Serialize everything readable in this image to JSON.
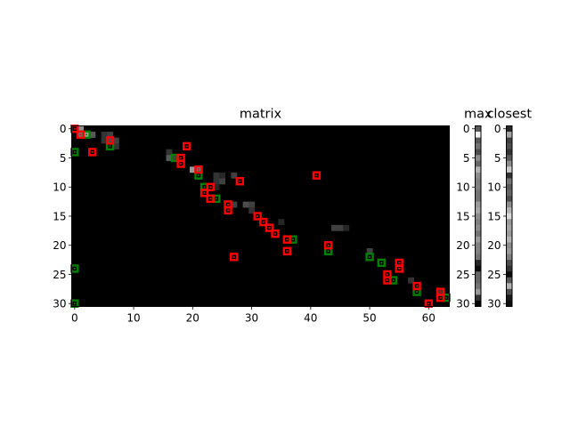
{
  "chart_data": [
    {
      "type": "heatmap",
      "title": "matrix",
      "rows": 31,
      "cols": 64,
      "xlim": [
        -0.5,
        63.5
      ],
      "ylim": [
        30.5,
        -0.5
      ],
      "xticks": [
        "0",
        "10",
        "20",
        "30",
        "40",
        "50",
        "60"
      ],
      "xtick_values": [
        0,
        10,
        20,
        30,
        40,
        50,
        60
      ],
      "yticks": [
        "0",
        "5",
        "10",
        "15",
        "20",
        "25",
        "30"
      ],
      "ytick_values": [
        0,
        5,
        10,
        15,
        20,
        25,
        30
      ],
      "colormap": "gray",
      "background_color": "#000000",
      "cells": [
        {
          "row": 0,
          "col": 1,
          "value": 0.55
        },
        {
          "row": 1,
          "col": 1,
          "value": 0.45
        },
        {
          "row": 1,
          "col": 2,
          "value": 0.65
        },
        {
          "row": 1,
          "col": 3,
          "value": 0.35
        },
        {
          "row": 1,
          "col": 5,
          "value": 0.2
        },
        {
          "row": 1,
          "col": 6,
          "value": 0.25
        },
        {
          "row": 2,
          "col": 5,
          "value": 0.2
        },
        {
          "row": 2,
          "col": 6,
          "value": 0.3
        },
        {
          "row": 2,
          "col": 7,
          "value": 0.25
        },
        {
          "row": 3,
          "col": 7,
          "value": 0.2
        },
        {
          "row": 4,
          "col": 16,
          "value": 0.2
        },
        {
          "row": 5,
          "col": 16,
          "value": 0.35
        },
        {
          "row": 5,
          "col": 17,
          "value": 0.25
        },
        {
          "row": 7,
          "col": 20,
          "value": 0.6
        },
        {
          "row": 7,
          "col": 21,
          "value": 0.45
        },
        {
          "row": 8,
          "col": 24,
          "value": 0.2
        },
        {
          "row": 8,
          "col": 25,
          "value": 0.15
        },
        {
          "row": 8,
          "col": 27,
          "value": 0.25
        },
        {
          "row": 9,
          "col": 24,
          "value": 0.2
        },
        {
          "row": 9,
          "col": 25,
          "value": 0.25
        },
        {
          "row": 10,
          "col": 24,
          "value": 0.15
        },
        {
          "row": 13,
          "col": 27,
          "value": 0.25
        },
        {
          "row": 13,
          "col": 29,
          "value": 0.3
        },
        {
          "row": 13,
          "col": 30,
          "value": 0.25
        },
        {
          "row": 14,
          "col": 30,
          "value": 0.2
        },
        {
          "row": 16,
          "col": 35,
          "value": 0.15
        },
        {
          "row": 17,
          "col": 44,
          "value": 0.25
        },
        {
          "row": 17,
          "col": 45,
          "value": 0.25
        },
        {
          "row": 17,
          "col": 46,
          "value": 0.15
        },
        {
          "row": 21,
          "col": 50,
          "value": 0.25
        },
        {
          "row": 26,
          "col": 57,
          "value": 0.2
        },
        {
          "row": 28,
          "col": 62,
          "value": 0.2
        }
      ],
      "red_markers": [
        {
          "row": 0,
          "col": 0
        },
        {
          "row": 1,
          "col": 1
        },
        {
          "row": 2,
          "col": 6
        },
        {
          "row": 3,
          "col": 19
        },
        {
          "row": 4,
          "col": 3
        },
        {
          "row": 5,
          "col": 18
        },
        {
          "row": 6,
          "col": 18
        },
        {
          "row": 7,
          "col": 21
        },
        {
          "row": 8,
          "col": 41
        },
        {
          "row": 9,
          "col": 28
        },
        {
          "row": 10,
          "col": 23
        },
        {
          "row": 11,
          "col": 22
        },
        {
          "row": 12,
          "col": 23
        },
        {
          "row": 13,
          "col": 26
        },
        {
          "row": 14,
          "col": 26
        },
        {
          "row": 15,
          "col": 31
        },
        {
          "row": 16,
          "col": 32
        },
        {
          "row": 17,
          "col": 33
        },
        {
          "row": 18,
          "col": 34
        },
        {
          "row": 19,
          "col": 36
        },
        {
          "row": 20,
          "col": 43
        },
        {
          "row": 21,
          "col": 36
        },
        {
          "row": 22,
          "col": 27
        },
        {
          "row": 23,
          "col": 55
        },
        {
          "row": 24,
          "col": 55
        },
        {
          "row": 25,
          "col": 53
        },
        {
          "row": 26,
          "col": 53
        },
        {
          "row": 27,
          "col": 58
        },
        {
          "row": 28,
          "col": 62
        },
        {
          "row": 29,
          "col": 62
        },
        {
          "row": 30,
          "col": 60
        }
      ],
      "green_markers": [
        {
          "row": 1,
          "col": 2
        },
        {
          "row": 3,
          "col": 6
        },
        {
          "row": 4,
          "col": 0
        },
        {
          "row": 5,
          "col": 17
        },
        {
          "row": 8,
          "col": 21
        },
        {
          "row": 10,
          "col": 22
        },
        {
          "row": 12,
          "col": 24
        },
        {
          "row": 19,
          "col": 37
        },
        {
          "row": 21,
          "col": 43
        },
        {
          "row": 22,
          "col": 50
        },
        {
          "row": 23,
          "col": 52
        },
        {
          "row": 24,
          "col": 0
        },
        {
          "row": 26,
          "col": 54
        },
        {
          "row": 28,
          "col": 58
        },
        {
          "row": 29,
          "col": 63
        },
        {
          "row": 30,
          "col": 0
        }
      ]
    },
    {
      "type": "heatmap",
      "title": "max",
      "rows": 31,
      "cols": 1,
      "yticks": [
        "0",
        "5",
        "10",
        "15",
        "20",
        "25",
        "30"
      ],
      "ytick_values": [
        0,
        5,
        10,
        15,
        20,
        25,
        30
      ],
      "xticks": [],
      "colormap": "gray",
      "values": [
        0.35,
        0.95,
        0.35,
        0.45,
        0.3,
        0.55,
        0.4,
        0.7,
        0.55,
        0.5,
        0.5,
        0.45,
        0.45,
        0.6,
        0.65,
        0.55,
        0.5,
        0.55,
        0.45,
        0.6,
        0.5,
        0.5,
        0.45,
        0.15,
        0.05,
        0.4,
        0.4,
        0.45,
        0.6,
        0.2,
        0.0
      ]
    },
    {
      "type": "heatmap",
      "title": "closest",
      "rows": 31,
      "cols": 1,
      "yticks": [
        "0",
        "5",
        "10",
        "15",
        "20",
        "25",
        "30"
      ],
      "ytick_values": [
        0,
        5,
        10,
        15,
        20,
        25,
        30
      ],
      "xticks": [],
      "colormap": "gray",
      "values": [
        0.15,
        0.65,
        0.25,
        0.3,
        0.2,
        0.35,
        0.55,
        0.8,
        0.2,
        0.45,
        0.35,
        0.4,
        0.3,
        0.55,
        0.7,
        0.85,
        0.6,
        0.65,
        0.6,
        0.7,
        0.55,
        0.6,
        0.5,
        0.3,
        0.2,
        0.05,
        0.35,
        0.7,
        0.3,
        0.1,
        0.05
      ]
    }
  ]
}
